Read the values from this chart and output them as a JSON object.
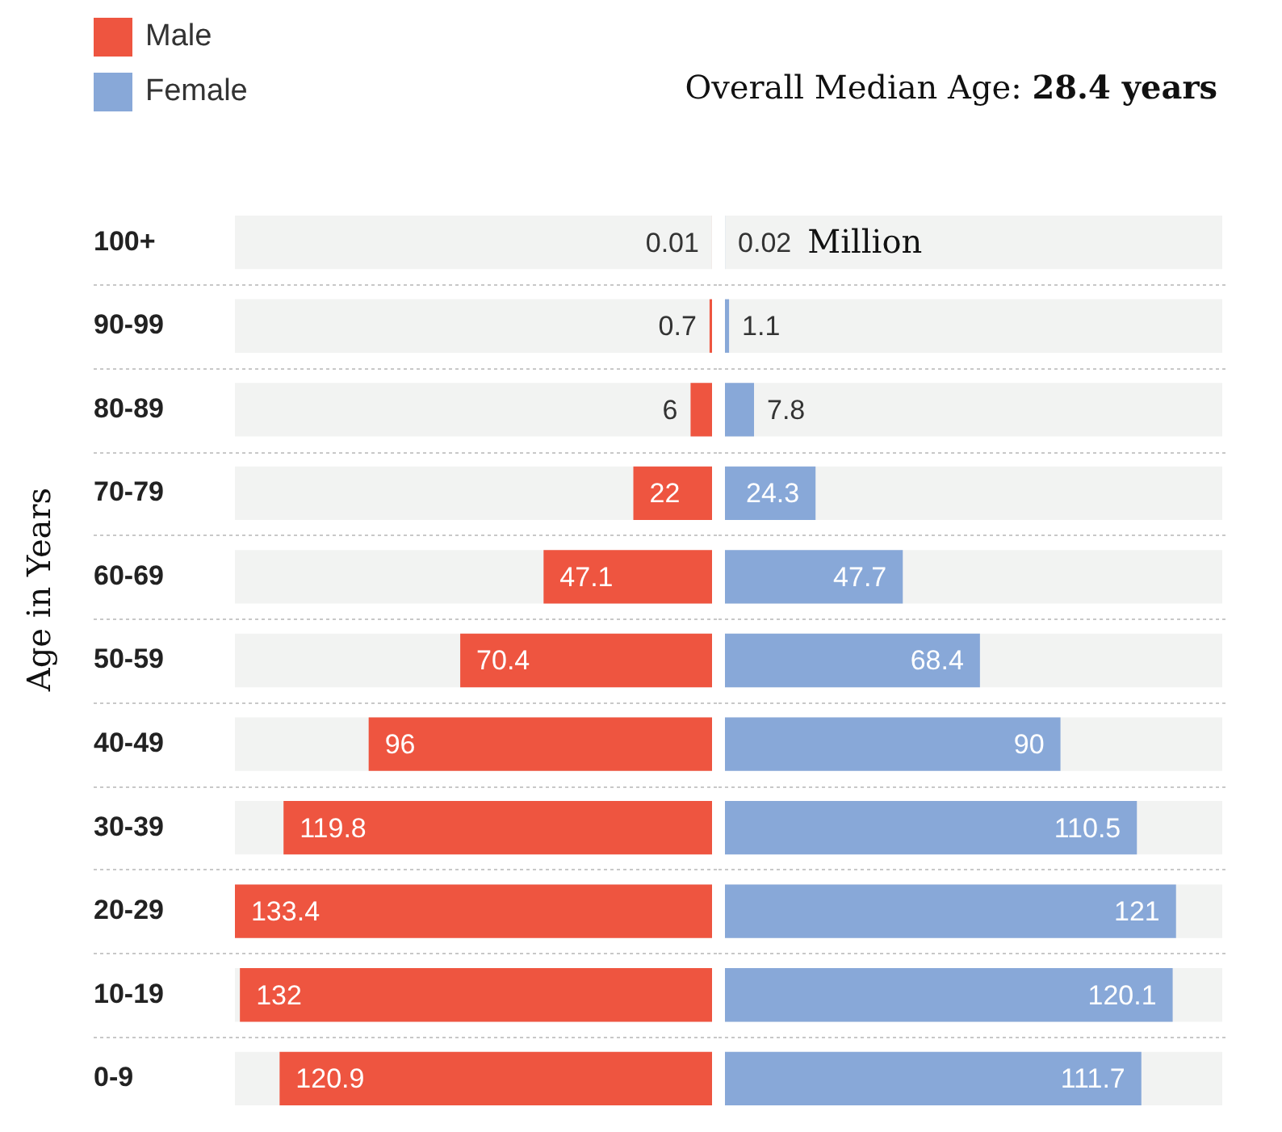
{
  "chart_data": [
    {
      "type": "bar",
      "orientation": "horizontal",
      "ylabel": "Age in Years",
      "categories": [
        "100+",
        "90-99",
        "80-89",
        "70-79",
        "60-69",
        "50-59",
        "40-49",
        "30-39",
        "20-29",
        "10-19",
        "0-9"
      ],
      "series": [
        {
          "name": "Male",
          "color": "#ee5540",
          "values": [
            0.01,
            0.7,
            6,
            22,
            47.1,
            70.4,
            96,
            119.8,
            133.4,
            132,
            120.9
          ]
        }
      ],
      "data_labels": true,
      "legend": "top left"
    },
    {
      "type": "bar",
      "orientation": "horizontal",
      "tick_labels": false,
      "categories": [
        "100+",
        "90-99",
        "80-89",
        "70-79",
        "60-69",
        "50-59",
        "40-49",
        "30-39",
        "20-29",
        "10-19",
        "0-9"
      ],
      "series": [
        {
          "name": "Female",
          "color": "#88a8d8",
          "values": [
            0.02,
            1.1,
            7.8,
            24.3,
            47.7,
            68.4,
            90,
            110.5,
            121,
            120.1,
            111.7
          ]
        }
      ],
      "data_labels": true,
      "legend": "top left",
      "annotations": [
        "Overall Median Age: 28.4 years",
        {
          "text": "Million",
          "x": 0.02,
          "y": "100+"
        }
      ]
    }
  ]
}
